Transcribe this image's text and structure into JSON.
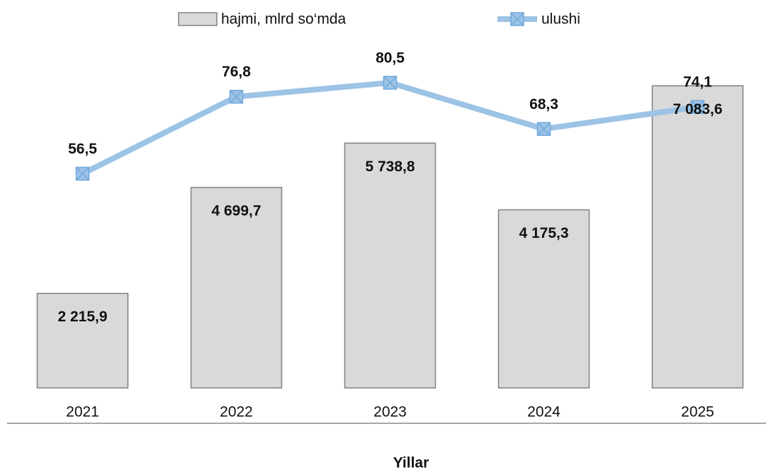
{
  "chart_data": {
    "type": "bar_line",
    "x_label": "Yillar",
    "categories": [
      "2021",
      "2022",
      "2023",
      "2024",
      "2025"
    ],
    "series": [
      {
        "name": "hajmi, mlrd so‘mda",
        "type": "bar",
        "color": "#d9d9d9",
        "values": [
          2215.9,
          4699.7,
          5738.8,
          4175.3,
          7083.6
        ],
        "value_labels": [
          "2 215,9",
          "4 699,7",
          "5 738,8",
          "4 175,3",
          "7 083,6"
        ]
      },
      {
        "name": "ulushi",
        "type": "line",
        "axis": "y2",
        "color": "#9dc3e6",
        "values": [
          56.5,
          76.8,
          80.5,
          68.3,
          74.1
        ],
        "value_labels": [
          "56,5",
          "76,8",
          "80,5",
          "68,3",
          "74,1"
        ]
      }
    ],
    "ylim": [
      0,
      8000
    ],
    "y2lim": [
      0,
      90
    ],
    "legend": "top"
  }
}
